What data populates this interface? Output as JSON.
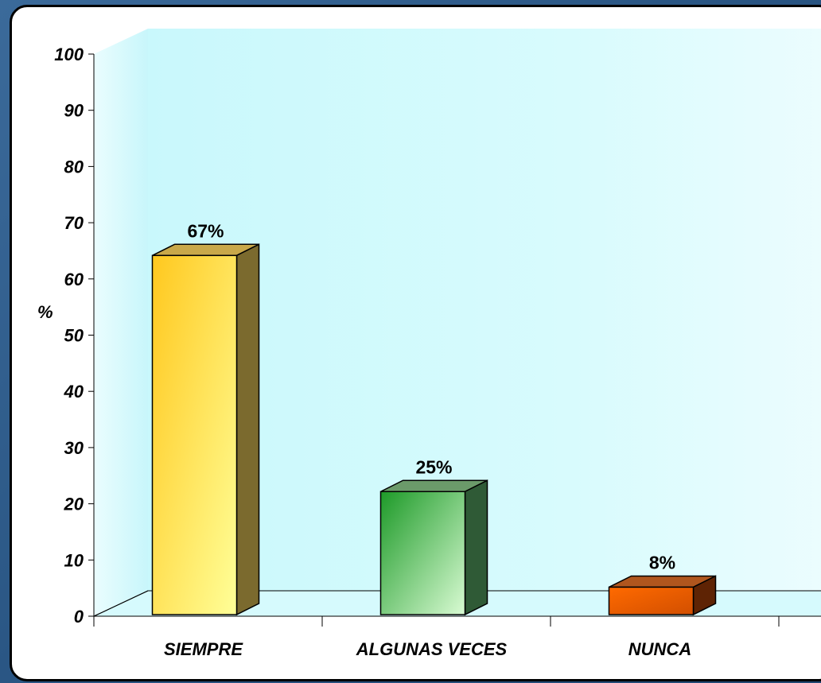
{
  "chart_data": {
    "type": "bar",
    "categories": [
      "SIEMPRE",
      "ALGUNAS VECES",
      "NUNCA"
    ],
    "values": [
      67,
      25,
      8
    ],
    "data_labels": [
      "67%",
      "25%",
      "8%"
    ],
    "ylabel": "%",
    "xlabel": "",
    "title": "",
    "ylim": [
      0,
      100
    ],
    "yticks": [
      "0",
      "10",
      "20",
      "30",
      "40",
      "50",
      "60",
      "70",
      "80",
      "90",
      "100"
    ],
    "grid": false,
    "bar_colors": [
      {
        "front_top": "#ffc81e",
        "front_bottom": "#ffff98",
        "side": "#7b6a2e",
        "top": "#c9a84a"
      },
      {
        "front_top": "#1d9a28",
        "front_bottom": "#d9fbd3",
        "side": "#2f5a36",
        "top": "#6b9a6a"
      },
      {
        "front_top": "#ff6a00",
        "front_bottom": "#d24f00",
        "side": "#5e2304",
        "top": "#b0561e"
      }
    ]
  }
}
